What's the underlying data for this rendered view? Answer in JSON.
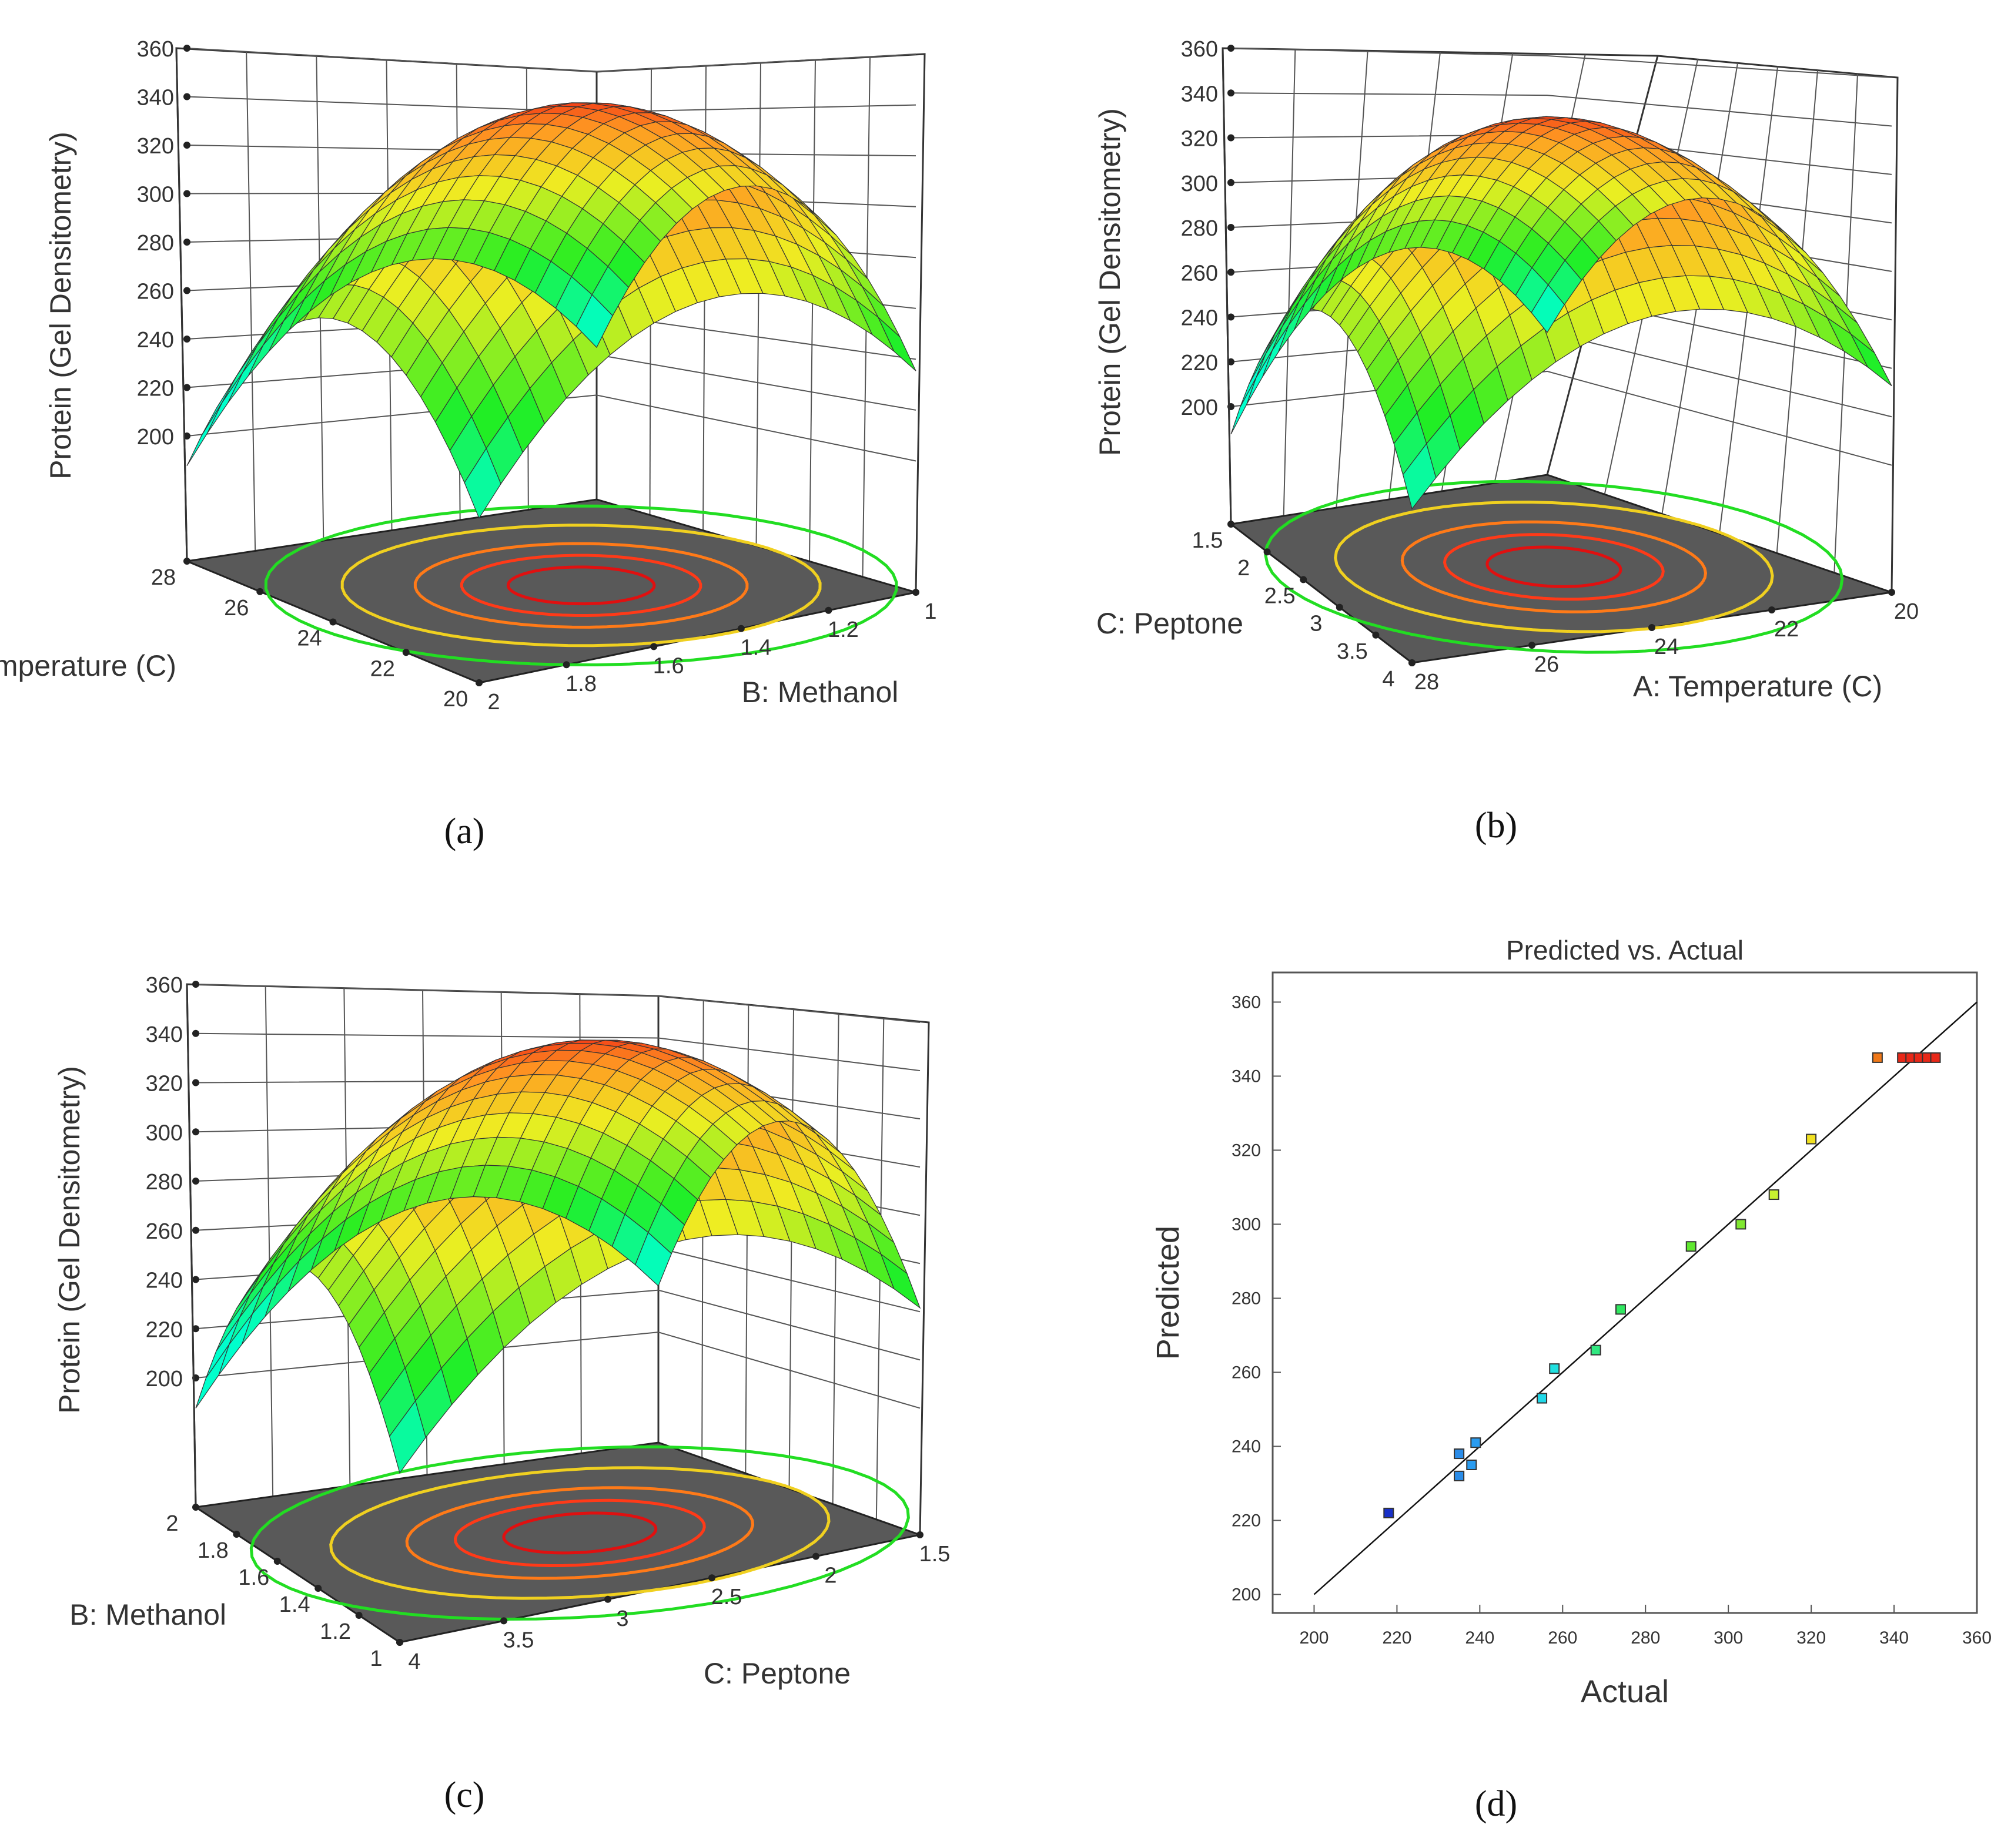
{
  "chart_data": [
    {
      "panel": "(a)",
      "type": "surface3d",
      "zlabel": "Protein (Gel Densitometry)",
      "zticks": [
        "200",
        "220",
        "240",
        "260",
        "280",
        "300",
        "320",
        "340",
        "360"
      ],
      "zlim": [
        200,
        360
      ],
      "x1label": "A: Temperature (C)",
      "x1ticks": [
        "28",
        "26",
        "24",
        "22",
        "20"
      ],
      "x1lim": [
        20,
        28
      ],
      "x2label": "B: Methanol",
      "x2ticks": [
        "2",
        "1.8",
        "1.6",
        "1.4",
        "1.2",
        "1"
      ],
      "x2lim": [
        1,
        2
      ],
      "surface": {
        "z_max": 345,
        "z_corner_front_left": 262,
        "z_corner_back": 305,
        "z_corner_right": 312,
        "z_corner_front": 292
      },
      "contours": [
        "green",
        "yellow",
        "orange",
        "red"
      ],
      "legend_colors": [
        "#00c8ff",
        "#10e810",
        "#ffff20",
        "#ff9a10",
        "#e81010"
      ]
    },
    {
      "panel": "(b)",
      "type": "surface3d",
      "zlabel": "Protein (Gel Densitometry)",
      "zticks": [
        "200",
        "220",
        "240",
        "260",
        "280",
        "300",
        "320",
        "340",
        "360"
      ],
      "zlim": [
        200,
        360
      ],
      "x1label": "C: Peptone",
      "x1ticks": [
        "1.5",
        "2",
        "2.5",
        "3",
        "3.5",
        "4"
      ],
      "x1lim": [
        1.5,
        4
      ],
      "x2label": "A: Temperature (C)",
      "x2ticks": [
        "28",
        "26",
        "24",
        "22",
        "20"
      ],
      "x2lim": [
        20,
        28
      ],
      "surface": {
        "z_max": 345,
        "z_corner_front_left": 268,
        "z_corner_back": 300,
        "z_corner_right": 242,
        "z_corner_front": 233
      },
      "contours": [
        "green",
        "yellow",
        "orange",
        "red"
      ]
    },
    {
      "panel": "(c)",
      "type": "surface3d",
      "zlabel": "Protein (Gel Densitometry)",
      "zticks": [
        "200",
        "220",
        "240",
        "260",
        "280",
        "300",
        "320",
        "340",
        "360"
      ],
      "zlim": [
        200,
        360
      ],
      "x1label": "B: Methanol",
      "x1ticks": [
        "2",
        "1.8",
        "1.6",
        "1.4",
        "1.2",
        "1"
      ],
      "x1lim": [
        1,
        2
      ],
      "x2label": "C: Peptone",
      "x2ticks": [
        "4",
        "3.5",
        "3",
        "2.5",
        "2",
        "1.5"
      ],
      "x2lim": [
        1.5,
        4
      ],
      "surface": {
        "z_max": 345,
        "z_corner_front_left": 243,
        "z_corner_back": 285,
        "z_corner_right": 290,
        "z_corner_front": 222
      },
      "contours": [
        "green",
        "yellow",
        "orange",
        "red"
      ]
    },
    {
      "panel": "(d)",
      "type": "scatter",
      "title": "Predicted vs. Actual",
      "xlabel": "Actual",
      "ylabel": "Predicted",
      "xlim": [
        190,
        360
      ],
      "ylim": [
        195,
        368
      ],
      "xticks": [
        "200",
        "220",
        "240",
        "260",
        "280",
        "300",
        "320",
        "340",
        "360"
      ],
      "yticks": [
        "200",
        "220",
        "240",
        "260",
        "280",
        "300",
        "320",
        "340",
        "360"
      ],
      "diagonal": [
        [
          200,
          200
        ],
        [
          360,
          360
        ]
      ],
      "points": [
        {
          "x": 218,
          "y": 222,
          "color": "#1830c8"
        },
        {
          "x": 235,
          "y": 238,
          "color": "#2a8ce8"
        },
        {
          "x": 235,
          "y": 232,
          "color": "#2a8ce8"
        },
        {
          "x": 238,
          "y": 235,
          "color": "#2a9cf0"
        },
        {
          "x": 239,
          "y": 241,
          "color": "#2a9cf0"
        },
        {
          "x": 255,
          "y": 253,
          "color": "#20d8e8"
        },
        {
          "x": 258,
          "y": 261,
          "color": "#20e0e0"
        },
        {
          "x": 268,
          "y": 266,
          "color": "#30e880"
        },
        {
          "x": 274,
          "y": 277,
          "color": "#30e860"
        },
        {
          "x": 291,
          "y": 294,
          "color": "#60e830"
        },
        {
          "x": 303,
          "y": 300,
          "color": "#80e830"
        },
        {
          "x": 311,
          "y": 308,
          "color": "#c8f030"
        },
        {
          "x": 320,
          "y": 323,
          "color": "#f0e020"
        },
        {
          "x": 336,
          "y": 345,
          "color": "#f07818"
        },
        {
          "x": 342,
          "y": 345,
          "color": "#e82818"
        },
        {
          "x": 344,
          "y": 345,
          "color": "#e82818"
        },
        {
          "x": 346,
          "y": 345,
          "color": "#e82818"
        },
        {
          "x": 348,
          "y": 345,
          "color": "#e82818"
        },
        {
          "x": 350,
          "y": 345,
          "color": "#e82818"
        }
      ]
    }
  ],
  "captions": [
    "(a)",
    "(b)",
    "(c)",
    "(d)"
  ]
}
